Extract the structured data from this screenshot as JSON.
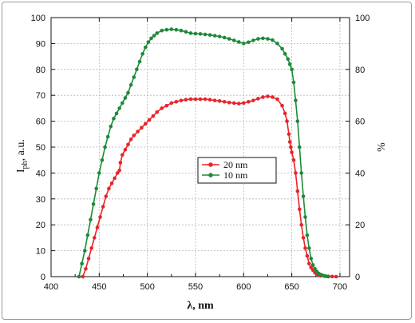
{
  "chart_data": {
    "type": "line",
    "xlabel": "λ, nm",
    "ylabel_left_main": "I",
    "ylabel_left_sub": "ph",
    "ylabel_left_rest": ", a.u.",
    "ylabel_right": "%",
    "xlim": [
      400,
      710
    ],
    "ylim": [
      0,
      100
    ],
    "xticks": [
      "400",
      "450",
      "500",
      "550",
      "600",
      "650",
      "700"
    ],
    "xtick_values": [
      400,
      450,
      500,
      550,
      600,
      650,
      700
    ],
    "yticks_left": [
      "0",
      "10",
      "20",
      "30",
      "40",
      "50",
      "60",
      "70",
      "80",
      "90",
      "100"
    ],
    "ytick_values_left": [
      0,
      10,
      20,
      30,
      40,
      50,
      60,
      70,
      80,
      90,
      100
    ],
    "yticks_right": [
      "0",
      "20",
      "40",
      "60",
      "80",
      "100"
    ],
    "ytick_values_right": [
      0,
      20,
      40,
      60,
      80,
      100
    ],
    "grid": true,
    "legend_position": "center",
    "series": [
      {
        "name": "20 nm",
        "color": "#e8242a",
        "x": [
          433,
          436,
          439,
          442,
          445,
          448,
          451,
          454,
          457,
          460,
          463,
          466,
          469,
          471,
          472,
          474,
          477,
          480,
          483,
          486,
          490,
          494,
          498,
          502,
          506,
          510,
          515,
          520,
          525,
          530,
          535,
          540,
          545,
          550,
          555,
          560,
          565,
          570,
          575,
          580,
          585,
          590,
          595,
          600,
          605,
          610,
          615,
          620,
          625,
          630,
          635,
          640,
          643,
          645,
          647,
          648,
          649,
          650,
          652,
          654,
          656,
          658,
          660,
          662,
          664,
          666,
          668,
          670,
          672,
          674,
          676,
          678,
          680,
          684,
          688,
          692,
          696
        ],
        "values": [
          0,
          3,
          7,
          11,
          15,
          19,
          23,
          27,
          31,
          34,
          36,
          38,
          40,
          41,
          44,
          47,
          49,
          51,
          53,
          54.5,
          56,
          57.5,
          59,
          60.5,
          62,
          63.5,
          65,
          66,
          67,
          67.5,
          68,
          68.3,
          68.5,
          68.5,
          68.5,
          68.5,
          68.3,
          68,
          67.8,
          67.5,
          67.2,
          67,
          66.8,
          67,
          67.5,
          68,
          68.7,
          69.3,
          69.6,
          69.3,
          68.5,
          66,
          63,
          60,
          55,
          52,
          50,
          48,
          45,
          40,
          33,
          26,
          20,
          15,
          11,
          8,
          5,
          3.5,
          2.5,
          1.5,
          1,
          0.6,
          0.3,
          0.2,
          0.1,
          0.05,
          0
        ]
      },
      {
        "name": "10 nm",
        "color": "#1d8a3a",
        "x": [
          429,
          432,
          435,
          438,
          441,
          444,
          447,
          450,
          453,
          456,
          459,
          462,
          465,
          468,
          471,
          474,
          477,
          480,
          483,
          486,
          489,
          492,
          495,
          498,
          501,
          504,
          507,
          510,
          515,
          520,
          525,
          530,
          535,
          540,
          545,
          550,
          555,
          560,
          565,
          570,
          575,
          580,
          585,
          590,
          595,
          600,
          605,
          610,
          615,
          620,
          625,
          630,
          635,
          640,
          643,
          646,
          648,
          650,
          652,
          654,
          656,
          658,
          660,
          662,
          664,
          666,
          668,
          670,
          672,
          674,
          676,
          678,
          680,
          682,
          684,
          686,
          688
        ],
        "values": [
          0,
          5,
          10,
          16,
          22,
          28,
          34,
          40,
          45,
          50,
          54,
          58,
          61,
          63,
          65,
          67,
          69,
          71,
          74,
          77,
          80,
          83,
          86,
          88.5,
          90.5,
          92,
          93,
          94,
          95,
          95.3,
          95.5,
          95.3,
          95,
          94.5,
          94,
          93.8,
          93.7,
          93.5,
          93.3,
          93,
          92.7,
          92.3,
          91.8,
          91.2,
          90.6,
          90,
          90.5,
          91.2,
          91.8,
          92,
          91.8,
          91.3,
          90,
          88,
          86,
          84,
          82,
          80,
          75,
          68,
          60,
          50,
          40,
          31,
          23,
          16,
          11,
          7,
          4.5,
          3,
          2,
          1.2,
          0.8,
          0.5,
          0.3,
          0.1,
          0
        ]
      }
    ]
  }
}
